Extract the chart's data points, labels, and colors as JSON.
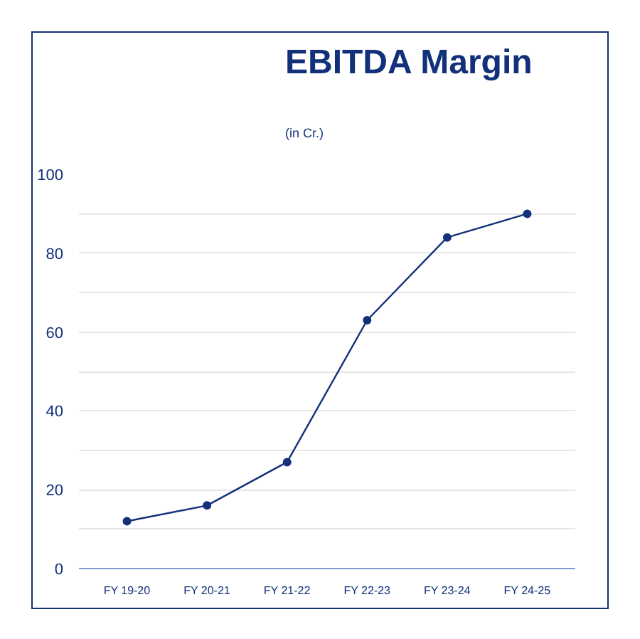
{
  "chart_data": {
    "type": "line",
    "title": "EBITDA Margin",
    "subtitle": "(in Cr.)",
    "categories": [
      "FY 19-20",
      "FY 20-21",
      "FY 21-22",
      "FY 22-23",
      "FY 23-24",
      "FY 24-25"
    ],
    "series": [
      {
        "color": "#12317a",
        "values": [
          12,
          16,
          27,
          63,
          84,
          90
        ]
      }
    ],
    "ylim": [
      0,
      100
    ],
    "yticks": [
      0,
      {
        "value": 10,
        "label": null
      },
      20,
      {
        "value": 30,
        "label": null
      },
      40,
      {
        "value": 50,
        "label": null
      },
      60,
      {
        "value": 70,
        "label": null
      },
      80,
      {
        "value": 90,
        "label": null
      },
      100
    ],
    "grid": "y",
    "marker": "circle",
    "line_style": "solid"
  }
}
